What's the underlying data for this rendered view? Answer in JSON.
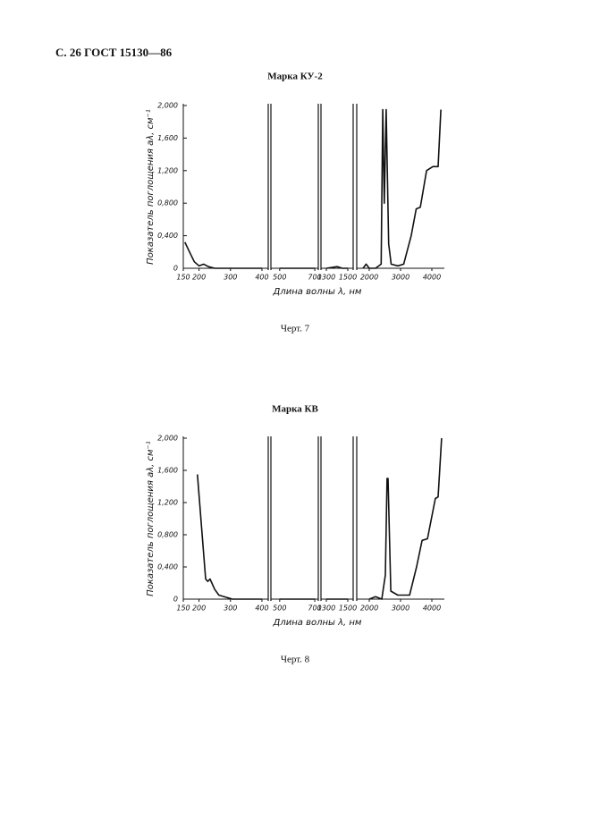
{
  "header": "С. 26 ГОСТ 15130—86",
  "chart_data": [
    {
      "type": "line",
      "title": "Марка КУ-2",
      "caption": "Черт. 7",
      "x_label": "Длина волны λ, нм",
      "y_label": "Показатель поглощения aλ, см⁻¹",
      "color": "#111111",
      "x_segments": [
        {
          "xlim": [
            150,
            420
          ],
          "xticks": [
            150,
            200,
            300,
            400
          ]
        },
        {
          "xlim": [
            450,
            720
          ],
          "xticks": [
            500,
            700
          ]
        },
        {
          "xlim": [
            1250,
            1550
          ],
          "xticks": [
            1300,
            1500
          ]
        },
        {
          "xlim": [
            1600,
            4400
          ],
          "xticks": [
            2000,
            3000,
            4000
          ]
        }
      ],
      "ylim": [
        0,
        2.0
      ],
      "yticks": [
        0,
        {
          "value": 0.4,
          "label": "0,400"
        },
        {
          "value": 0.8,
          "label": "0,800"
        },
        {
          "value": 1.2,
          "label": "1,200"
        },
        {
          "value": 1.6,
          "label": "1,600"
        },
        {
          "value": 2.0,
          "label": "2,000"
        }
      ],
      "x": [
        155,
        170,
        185,
        200,
        215,
        230,
        250,
        300,
        400,
        null,
        500,
        700,
        null,
        1300,
        1400,
        1450,
        1500,
        null,
        1800,
        1900,
        2000,
        2200,
        2380,
        2430,
        2480,
        2540,
        2620,
        2700,
        2910,
        3100,
        3340,
        3500,
        3630,
        3830,
        4030,
        4200,
        4290
      ],
      "values": [
        0.32,
        0.2,
        0.08,
        0.03,
        0.05,
        0.02,
        0,
        0,
        0,
        null,
        0,
        0,
        null,
        0,
        0.02,
        0,
        0,
        null,
        0,
        0.05,
        0,
        0,
        0.05,
        1.95,
        0.8,
        1.95,
        0.3,
        0.05,
        0.03,
        0.05,
        0.4,
        0.73,
        0.75,
        1.2,
        1.25,
        1.25,
        1.95
      ]
    },
    {
      "type": "line",
      "title": "Марка КВ",
      "caption": "Черт. 8",
      "x_label": "Длина волны λ, нм",
      "y_label": "Показатель поглощения aλ, см⁻¹",
      "color": "#111111",
      "x_segments": [
        {
          "xlim": [
            150,
            420
          ],
          "xticks": [
            150,
            200,
            300,
            400
          ]
        },
        {
          "xlim": [
            450,
            720
          ],
          "xticks": [
            500,
            700
          ]
        },
        {
          "xlim": [
            1250,
            1550
          ],
          "xticks": [
            1300,
            1500
          ]
        },
        {
          "xlim": [
            1600,
            4400
          ],
          "xticks": [
            2000,
            3000,
            4000
          ]
        }
      ],
      "ylim": [
        0,
        2.0
      ],
      "yticks": [
        0,
        {
          "value": 0.4,
          "label": "0,400"
        },
        {
          "value": 0.8,
          "label": "0,800"
        },
        {
          "value": 1.2,
          "label": "1,200"
        },
        {
          "value": 1.6,
          "label": "1,600"
        },
        {
          "value": 2.0,
          "label": "2,000"
        }
      ],
      "x": [
        195,
        210,
        221,
        228,
        235,
        250,
        263,
        306,
        400,
        null,
        500,
        700,
        null,
        1300,
        1500,
        null,
        2000,
        2200,
        2400,
        2514,
        2570,
        2600,
        2690,
        2910,
        3290,
        3510,
        3690,
        3860,
        4110,
        4200,
        4310
      ],
      "values": [
        1.55,
        0.8,
        0.25,
        0.22,
        0.25,
        0.12,
        0.05,
        0,
        0,
        null,
        0,
        0,
        null,
        0,
        0,
        null,
        0,
        0.03,
        0,
        0.3,
        1.5,
        1.5,
        0.1,
        0.05,
        0.05,
        0.4,
        0.73,
        0.75,
        1.25,
        1.27,
        2.0
      ]
    }
  ]
}
